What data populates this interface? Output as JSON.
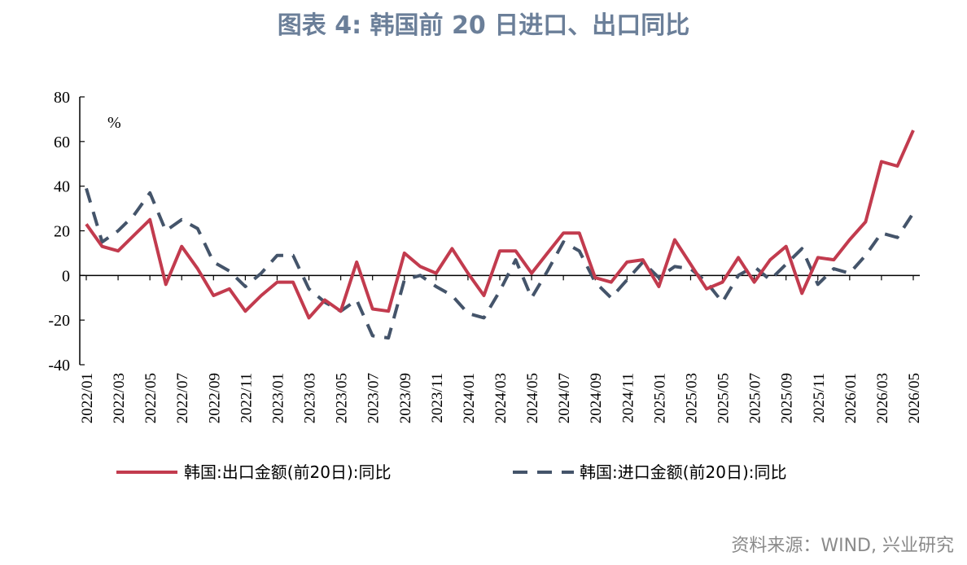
{
  "header": {
    "title": "图表 4: 韩国前 20 日进口、出口同比"
  },
  "footer": {
    "source": "资料来源：WIND, 兴业研究"
  },
  "chart_data": {
    "type": "line",
    "title": "图表 4: 韩国前 20 日进口、出口同比",
    "unit_label": "%",
    "ylim": [
      -40,
      80
    ],
    "yticks": [
      -40,
      -20,
      0,
      20,
      40,
      60,
      80
    ],
    "xtick_labels": [
      "2022/01",
      "2022/03",
      "2022/05",
      "2022/07",
      "2022/09",
      "2022/11",
      "2023/01",
      "2023/03",
      "2023/05",
      "2023/07",
      "2023/09",
      "2023/11",
      "2024/01",
      "2024/03",
      "2024/05",
      "2024/07",
      "2024/09",
      "2024/11",
      "2025/01",
      "2025/03",
      "2025/05",
      "2025/07",
      "2025/09",
      "2025/11",
      "2026/01",
      "2026/03",
      "2026/05"
    ],
    "grid": false,
    "legend_position": "bottom",
    "series": [
      {
        "name": "韩国:出口金额(前20日):同比",
        "color": "#c23b4e",
        "style": "solid",
        "values": [
          23,
          13,
          11,
          18,
          25,
          -4,
          13,
          3,
          -9,
          -6,
          -16,
          -9,
          -3,
          -3,
          -19,
          -11,
          -16,
          6,
          -15,
          -16,
          10,
          4,
          1,
          12,
          1,
          -9,
          11,
          11,
          1,
          10,
          19,
          19,
          -1,
          -3,
          6,
          7,
          -5,
          16,
          5,
          -6,
          -3,
          8,
          -3,
          7,
          13,
          -8,
          8,
          7,
          16,
          24,
          51,
          49,
          65
        ]
      },
      {
        "name": "韩国:进口金额(前20日):同比",
        "color": "#44546a",
        "style": "dashed",
        "values": [
          39,
          15,
          20,
          27,
          37,
          20,
          25,
          21,
          6,
          2,
          -5,
          1,
          9,
          9,
          -6,
          -12,
          -16,
          -11,
          -27,
          -28,
          -2,
          0,
          -5,
          -9,
          -17,
          -19,
          -7,
          7,
          -10,
          2,
          15,
          11,
          -3,
          -10,
          -2,
          6,
          -1,
          4,
          3,
          -3,
          -12,
          0,
          4,
          -2,
          5,
          12,
          -4,
          3,
          1,
          9,
          19,
          17,
          28
        ]
      }
    ]
  }
}
